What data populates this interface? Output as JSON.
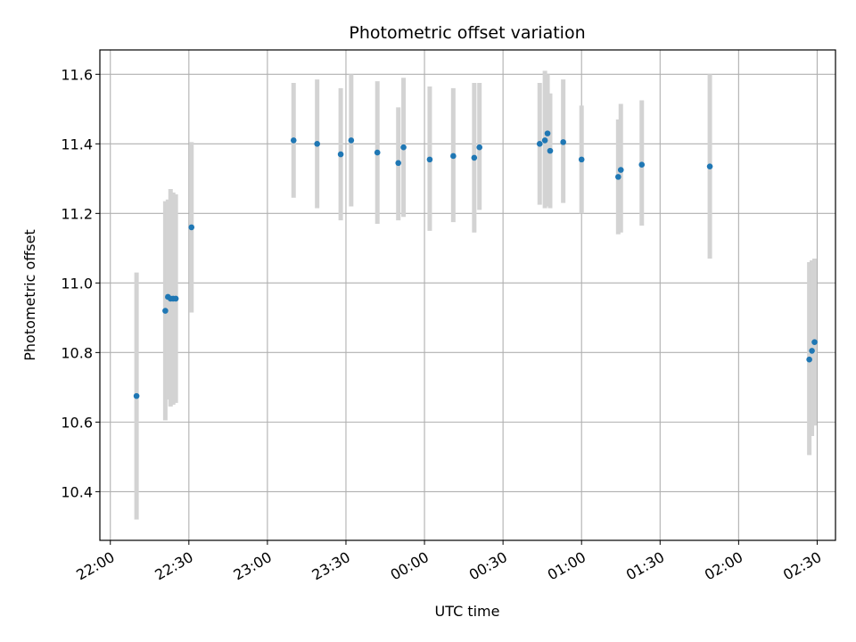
{
  "chart_data": {
    "type": "scatter",
    "title": "Photometric offset variation",
    "xlabel": "UTC time",
    "ylabel": "Photometric offset",
    "x_tick_labels": [
      "22:00",
      "22:30",
      "23:00",
      "23:30",
      "00:00",
      "00:30",
      "01:00",
      "01:30",
      "02:00",
      "02:30"
    ],
    "y_tick_labels": [
      "10.4",
      "10.6",
      "10.8",
      "11.0",
      "11.2",
      "11.4",
      "11.6"
    ],
    "y_ticks": [
      10.4,
      10.6,
      10.8,
      11.0,
      11.2,
      11.4,
      11.6
    ],
    "xlim": [
      "21:56",
      "02:37"
    ],
    "ylim": [
      10.26,
      11.67
    ],
    "grid": true,
    "point_color": "#1f77b4",
    "errorbar_color": "#d3d3d3",
    "points": [
      {
        "t": "22:10",
        "y": 10.675,
        "lo": 10.32,
        "hi": 11.03
      },
      {
        "t": "22:21",
        "y": 10.92,
        "lo": 10.605,
        "hi": 11.235
      },
      {
        "t": "22:22",
        "y": 10.96,
        "lo": 10.665,
        "hi": 11.24
      },
      {
        "t": "22:23",
        "y": 10.955,
        "lo": 10.645,
        "hi": 11.27
      },
      {
        "t": "22:24",
        "y": 10.955,
        "lo": 10.65,
        "hi": 11.26
      },
      {
        "t": "22:25",
        "y": 10.955,
        "lo": 10.655,
        "hi": 11.255
      },
      {
        "t": "22:31",
        "y": 11.16,
        "lo": 10.915,
        "hi": 11.405
      },
      {
        "t": "23:10",
        "y": 11.41,
        "lo": 11.245,
        "hi": 11.575
      },
      {
        "t": "23:19",
        "y": 11.4,
        "lo": 11.215,
        "hi": 11.585
      },
      {
        "t": "23:28",
        "y": 11.37,
        "lo": 11.18,
        "hi": 11.56
      },
      {
        "t": "23:32",
        "y": 11.41,
        "lo": 11.22,
        "hi": 11.6
      },
      {
        "t": "23:42",
        "y": 11.375,
        "lo": 11.17,
        "hi": 11.58
      },
      {
        "t": "23:50",
        "y": 11.345,
        "lo": 11.18,
        "hi": 11.505
      },
      {
        "t": "23:52",
        "y": 11.39,
        "lo": 11.19,
        "hi": 11.59
      },
      {
        "t": "00:02",
        "y": 11.355,
        "lo": 11.15,
        "hi": 11.565
      },
      {
        "t": "00:11",
        "y": 11.365,
        "lo": 11.175,
        "hi": 11.56
      },
      {
        "t": "00:19",
        "y": 11.36,
        "lo": 11.145,
        "hi": 11.575
      },
      {
        "t": "00:21",
        "y": 11.39,
        "lo": 11.21,
        "hi": 11.575
      },
      {
        "t": "00:44",
        "y": 11.4,
        "lo": 11.225,
        "hi": 11.575
      },
      {
        "t": "00:46",
        "y": 11.41,
        "lo": 11.215,
        "hi": 11.61
      },
      {
        "t": "00:47",
        "y": 11.43,
        "lo": 11.22,
        "hi": 11.6
      },
      {
        "t": "00:48",
        "y": 11.38,
        "lo": 11.215,
        "hi": 11.545
      },
      {
        "t": "00:53",
        "y": 11.405,
        "lo": 11.23,
        "hi": 11.585
      },
      {
        "t": "01:00",
        "y": 11.355,
        "lo": 11.2,
        "hi": 11.51
      },
      {
        "t": "01:14",
        "y": 11.305,
        "lo": 11.14,
        "hi": 11.47
      },
      {
        "t": "01:15",
        "y": 11.325,
        "lo": 11.145,
        "hi": 11.515
      },
      {
        "t": "01:23",
        "y": 11.34,
        "lo": 11.165,
        "hi": 11.525
      },
      {
        "t": "01:49",
        "y": 11.335,
        "lo": 11.07,
        "hi": 11.6
      },
      {
        "t": "02:27",
        "y": 10.78,
        "lo": 10.505,
        "hi": 11.06
      },
      {
        "t": "02:28",
        "y": 10.805,
        "lo": 10.56,
        "hi": 11.065
      },
      {
        "t": "02:29",
        "y": 10.83,
        "lo": 10.59,
        "hi": 11.07
      }
    ]
  }
}
